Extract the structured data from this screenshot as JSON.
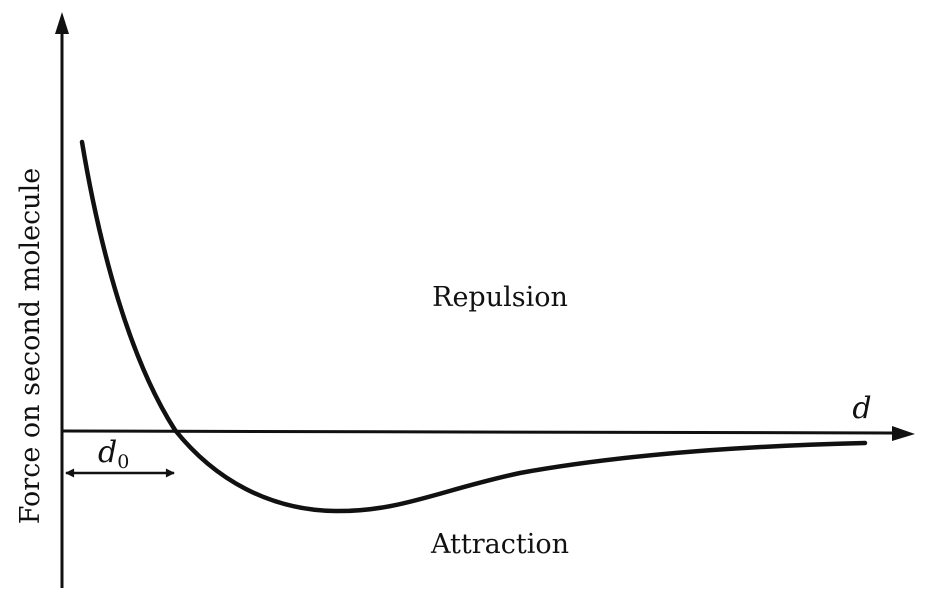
{
  "diagram": {
    "y_axis_label": "Force on second molecule",
    "x_axis_label": "d",
    "region_upper": "Repulsion",
    "region_lower": "Attraction",
    "equilibrium_label": {
      "main": "d",
      "subscript": "0"
    },
    "colors": {
      "ink": "#111111",
      "background": "#ffffff"
    }
  }
}
